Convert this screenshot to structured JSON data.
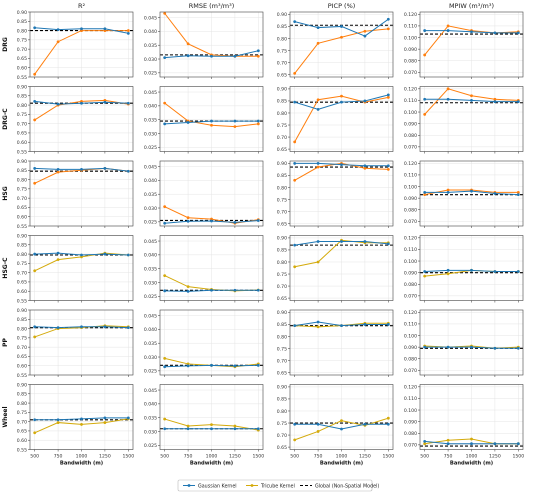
{
  "chart_data": {
    "type": "line",
    "x": [
      500,
      750,
      1000,
      1250,
      1500
    ],
    "xticks": [
      "500",
      "750",
      "1000",
      "1250",
      "1500"
    ],
    "xlabel": "Bandwidth (m)",
    "columns": [
      {
        "title": "R²",
        "ticks": [
          [
            "0.55",
            "0.60",
            "0.65",
            "0.70",
            "0.75",
            "0.80",
            "0.85",
            "0.90"
          ],
          [
            "0.55",
            "0.60",
            "0.65",
            "0.70",
            "0.75",
            "0.80",
            "0.85",
            "0.90"
          ],
          [
            "0.55",
            "0.60",
            "0.65",
            "0.70",
            "0.75",
            "0.80",
            "0.85",
            "0.90"
          ],
          [
            "0.55",
            "0.60",
            "0.65",
            "0.70",
            "0.75",
            "0.80",
            "0.85",
            "0.90"
          ],
          [
            "0.55",
            "0.60",
            "0.65",
            "0.70",
            "0.75",
            "0.80",
            "0.85",
            "0.90"
          ],
          [
            "0.55",
            "0.60",
            "0.65",
            "0.70",
            "0.75",
            "0.80",
            "0.85",
            "0.90"
          ]
        ],
        "ylim": [
          0.55,
          0.9
        ]
      },
      {
        "title": "RMSE (m³/m³)",
        "ticks": [
          [
            "0.025",
            "0.030",
            "0.035",
            "0.040",
            "0.045"
          ],
          [
            "0.025",
            "0.030",
            "0.035",
            "0.040",
            "0.045"
          ],
          [
            "0.025",
            "0.030",
            "0.035",
            "0.040",
            "0.045"
          ],
          [
            "0.025",
            "0.030",
            "0.035",
            "0.040",
            "0.045"
          ],
          [
            "0.025",
            "0.030",
            "0.035",
            "0.040",
            "0.045"
          ],
          [
            "0.025",
            "0.030",
            "0.035",
            "0.040",
            "0.045"
          ]
        ],
        "ylim": [
          0.0235,
          0.047
        ]
      },
      {
        "title": "PICP (%)",
        "ticks": [
          [
            "0.65",
            "0.70",
            "0.75",
            "0.80",
            "0.85",
            "0.90"
          ],
          [
            "0.65",
            "0.70",
            "0.75",
            "0.80",
            "0.85",
            "0.90"
          ],
          [
            "0.65",
            "0.70",
            "0.75",
            "0.80",
            "0.85",
            "0.90"
          ],
          [
            "0.65",
            "0.70",
            "0.75",
            "0.80",
            "0.85",
            "0.90"
          ],
          [
            "0.65",
            "0.70",
            "0.75",
            "0.80",
            "0.85",
            "0.90"
          ],
          [
            "0.65",
            "0.70",
            "0.75",
            "0.80",
            "0.85",
            "0.90"
          ]
        ],
        "ylim": [
          0.64,
          0.91
        ]
      },
      {
        "title": "MPIW (m³/m³)",
        "ticks": [
          [
            "0.070",
            "0.080",
            "0.090",
            "0.100",
            "0.110",
            "0.120"
          ],
          [
            "0.070",
            "0.080",
            "0.090",
            "0.100",
            "0.110",
            "0.120"
          ],
          [
            "0.070",
            "0.080",
            "0.090",
            "0.100",
            "0.110",
            "0.120"
          ],
          [
            "0.070",
            "0.080",
            "0.090",
            "0.100",
            "0.110",
            "0.120"
          ],
          [
            "0.070",
            "0.080",
            "0.090",
            "0.100",
            "0.110",
            "0.120"
          ],
          [
            "0.070",
            "0.080",
            "0.090",
            "0.100",
            "0.110",
            "0.120"
          ]
        ],
        "ylim": [
          0.066,
          0.122
        ]
      }
    ],
    "rows": [
      {
        "label": "DRG",
        "tricube_color": "#ff7f0e",
        "panels": [
          {
            "gaussian": [
              0.815,
              0.805,
              0.81,
              0.81,
              0.785
            ],
            "tricube": [
              0.565,
              0.74,
              0.8,
              0.8,
              0.8
            ],
            "global": 0.8
          },
          {
            "gaussian": [
              0.0305,
              0.0312,
              0.031,
              0.031,
              0.033
            ],
            "tricube": [
              0.0465,
              0.0355,
              0.0315,
              0.031,
              0.031
            ],
            "global": 0.0315
          },
          {
            "gaussian": [
              0.87,
              0.845,
              0.85,
              0.81,
              0.88
            ],
            "tricube": [
              0.655,
              0.78,
              0.805,
              0.83,
              0.84
            ],
            "global": 0.855
          },
          {
            "gaussian": [
              0.106,
              0.106,
              0.105,
              0.104,
              0.104
            ],
            "tricube": [
              0.085,
              0.11,
              0.106,
              0.104,
              0.105
            ],
            "global": 0.103
          }
        ]
      },
      {
        "label": "DRG-C",
        "tricube_color": "#ff7f0e",
        "panels": [
          {
            "gaussian": [
              0.82,
              0.805,
              0.81,
              0.815,
              0.81
            ],
            "tricube": [
              0.72,
              0.8,
              0.82,
              0.825,
              0.805
            ],
            "global": 0.81
          },
          {
            "gaussian": [
              0.0335,
              0.034,
              0.0345,
              0.0345,
              0.0345
            ],
            "tricube": [
              0.041,
              0.0345,
              0.033,
              0.0325,
              0.0335
            ],
            "global": 0.0345
          },
          {
            "gaussian": [
              0.845,
              0.815,
              0.845,
              0.85,
              0.875
            ],
            "tricube": [
              0.68,
              0.855,
              0.87,
              0.845,
              0.865
            ],
            "global": 0.845
          },
          {
            "gaussian": [
              0.111,
              0.111,
              0.11,
              0.109,
              0.109
            ],
            "tricube": [
              0.098,
              0.12,
              0.114,
              0.111,
              0.11
            ],
            "global": 0.108
          }
        ]
      },
      {
        "label": "HSG",
        "tricube_color": "#ff7f0e",
        "panels": [
          {
            "gaussian": [
              0.86,
              0.855,
              0.855,
              0.86,
              0.845
            ],
            "tricube": [
              0.78,
              0.84,
              0.85,
              0.86,
              0.845
            ],
            "global": 0.845
          },
          {
            "gaussian": [
              0.0245,
              0.0252,
              0.0253,
              0.0248,
              0.0255
            ],
            "tricube": [
              0.0305,
              0.0265,
              0.026,
              0.0245,
              0.0258
            ],
            "global": 0.0255
          },
          {
            "gaussian": [
              0.9,
              0.9,
              0.895,
              0.89,
              0.89
            ],
            "tricube": [
              0.83,
              0.885,
              0.9,
              0.88,
              0.875
            ],
            "global": 0.885
          },
          {
            "gaussian": [
              0.095,
              0.095,
              0.096,
              0.094,
              0.093
            ],
            "tricube": [
              0.093,
              0.097,
              0.097,
              0.095,
              0.095
            ],
            "global": 0.093
          }
        ]
      },
      {
        "label": "HSG-C",
        "tricube_color": "#d4aa0b",
        "panels": [
          {
            "gaussian": [
              0.8,
              0.805,
              0.795,
              0.8,
              0.795
            ],
            "tricube": [
              0.71,
              0.77,
              0.785,
              0.805,
              0.795
            ],
            "global": 0.795
          },
          {
            "gaussian": [
              0.027,
              0.0268,
              0.0272,
              0.0272,
              0.0272
            ],
            "tricube": [
              0.0325,
              0.0285,
              0.0275,
              0.027,
              0.0273
            ],
            "global": 0.0272
          },
          {
            "gaussian": [
              0.87,
              0.885,
              0.885,
              0.885,
              0.875
            ],
            "tricube": [
              0.78,
              0.8,
              0.89,
              0.88,
              0.88
            ],
            "global": 0.87
          },
          {
            "gaussian": [
              0.091,
              0.092,
              0.092,
              0.091,
              0.091
            ],
            "tricube": [
              0.087,
              0.089,
              0.092,
              0.091,
              0.091
            ],
            "global": 0.09
          }
        ]
      },
      {
        "label": "PP",
        "tricube_color": "#d4aa0b",
        "panels": [
          {
            "gaussian": [
              0.81,
              0.805,
              0.81,
              0.81,
              0.805
            ],
            "tricube": [
              0.755,
              0.8,
              0.805,
              0.815,
              0.81
            ],
            "global": 0.805
          },
          {
            "gaussian": [
              0.0265,
              0.0268,
              0.027,
              0.0268,
              0.027
            ],
            "tricube": [
              0.0295,
              0.0275,
              0.027,
              0.0265,
              0.0275
            ],
            "global": 0.027
          },
          {
            "gaussian": [
              0.845,
              0.86,
              0.845,
              0.85,
              0.85
            ],
            "tricube": [
              0.845,
              0.84,
              0.845,
              0.855,
              0.855
            ],
            "global": 0.845
          },
          {
            "gaussian": [
              0.09,
              0.09,
              0.09,
              0.089,
              0.089
            ],
            "tricube": [
              0.091,
              0.09,
              0.091,
              0.089,
              0.09
            ],
            "global": 0.089
          }
        ]
      },
      {
        "label": "Wheel",
        "tricube_color": "#d4aa0b",
        "panels": [
          {
            "gaussian": [
              0.71,
              0.71,
              0.715,
              0.72,
              0.72
            ],
            "tricube": [
              0.64,
              0.695,
              0.685,
              0.695,
              0.715
            ],
            "global": 0.71
          },
          {
            "gaussian": [
              0.031,
              0.031,
              0.031,
              0.031,
              0.031
            ],
            "tricube": [
              0.0345,
              0.032,
              0.0325,
              0.032,
              0.0305
            ],
            "global": 0.031
          },
          {
            "gaussian": [
              0.745,
              0.745,
              0.725,
              0.745,
              0.745
            ],
            "tricube": [
              0.68,
              0.715,
              0.76,
              0.74,
              0.77
            ],
            "global": 0.75
          },
          {
            "gaussian": [
              0.073,
              0.071,
              0.071,
              0.071,
              0.071
            ],
            "tricube": [
              0.071,
              0.074,
              0.075,
              0.071,
              0.071
            ],
            "global": 0.069
          }
        ]
      }
    ],
    "legend": {
      "placement": "bottom-center",
      "gaussian": "Gaussian Kernel",
      "tricube": "Tricube Kernel",
      "global": "Global (Non-Spatial Model)"
    },
    "colors": {
      "gaussian": "#1f77b4",
      "tricube": "#ff7f0e",
      "tricube_alt": "#d4aa0b",
      "global": "#000000"
    },
    "grid": true
  }
}
